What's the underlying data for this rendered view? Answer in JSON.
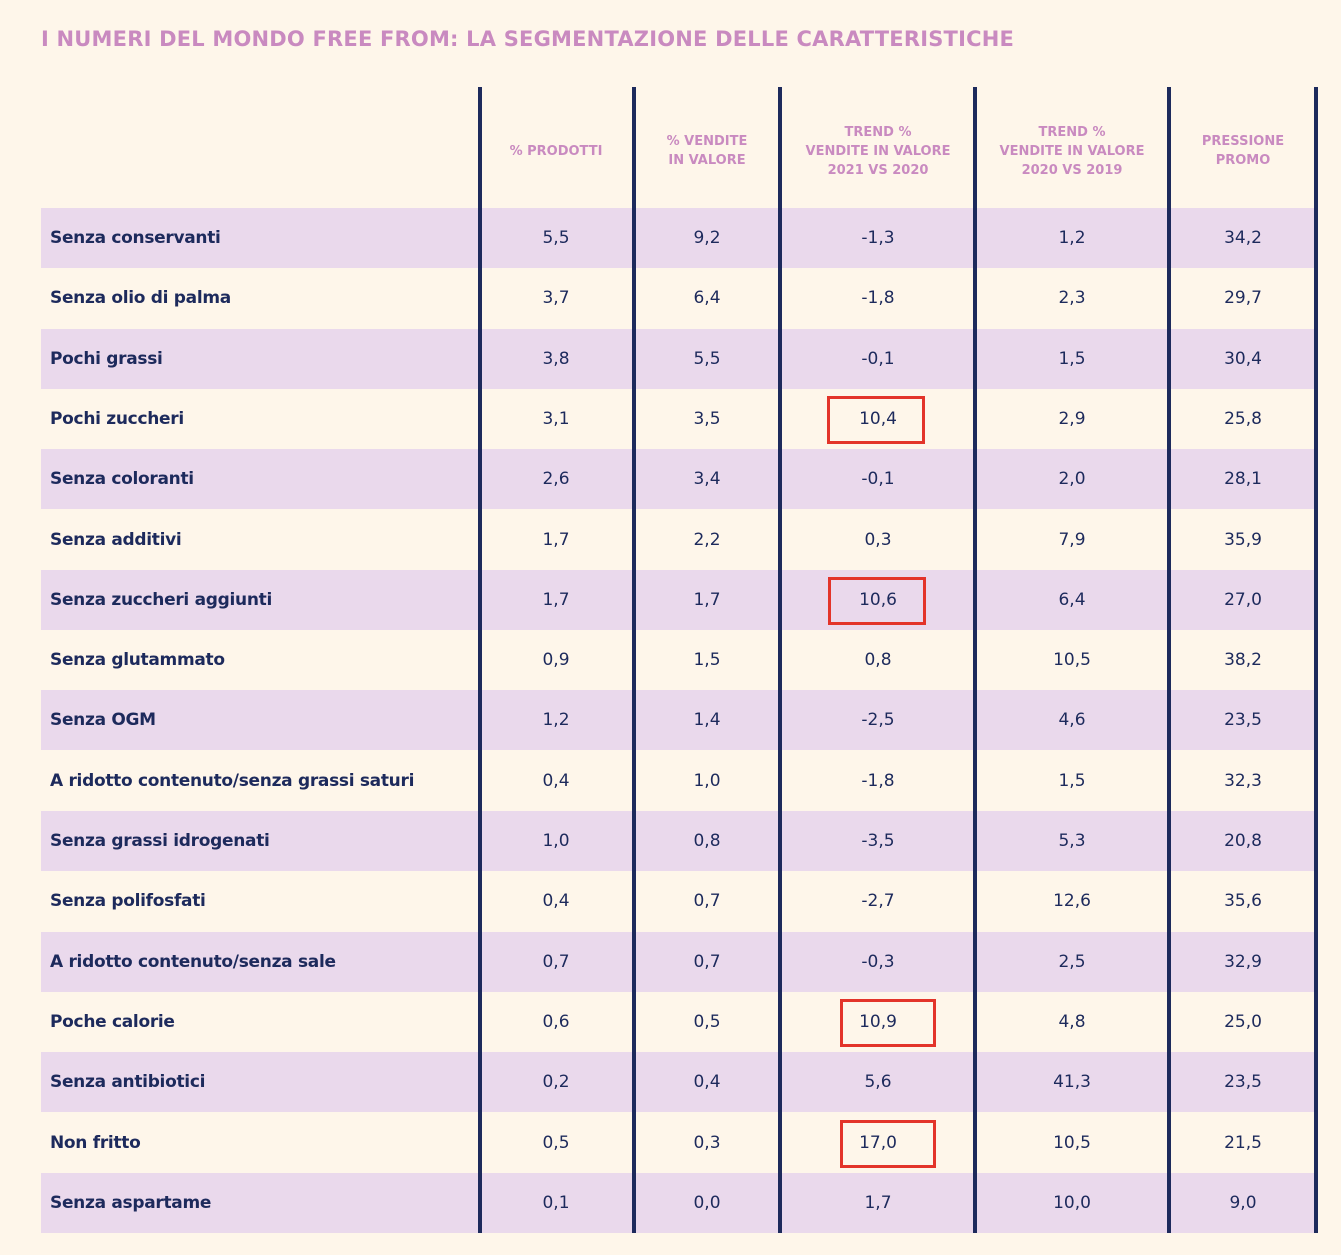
{
  "title": "I NUMERI DEL MONDO FREE FROM: LA SEGMENTAZIONE DELLE CARATTERISTICHE",
  "columns": [
    {
      "lines": [
        "% PRODOTTI"
      ]
    },
    {
      "lines": [
        "% VENDITE",
        "IN VALORE"
      ]
    },
    {
      "lines": [
        "TREND %",
        "VENDITE IN VALORE",
        "2021 VS 2020"
      ]
    },
    {
      "lines": [
        "TREND %",
        "VENDITE IN VALORE",
        "2020 VS 2019"
      ]
    },
    {
      "lines": [
        "PRESSIONE",
        "PROMO"
      ]
    }
  ],
  "rows": [
    {
      "label": "Senza conservanti",
      "values": [
        "5,5",
        "9,2",
        "-1,3",
        "1,2",
        "34,2"
      ],
      "highlight": false
    },
    {
      "label": "Senza olio di palma",
      "values": [
        "3,7",
        "6,4",
        "-1,8",
        "2,3",
        "29,7"
      ],
      "highlight": false
    },
    {
      "label": "Pochi grassi",
      "values": [
        "3,8",
        "5,5",
        "-0,1",
        "1,5",
        "30,4"
      ],
      "highlight": false
    },
    {
      "label": "Pochi zuccheri",
      "values": [
        "3,1",
        "3,5",
        "10,4",
        "2,9",
        "25,8"
      ],
      "highlight": true
    },
    {
      "label": "Senza coloranti",
      "values": [
        "2,6",
        "3,4",
        "-0,1",
        "2,0",
        "28,1"
      ],
      "highlight": false
    },
    {
      "label": "Senza additivi",
      "values": [
        "1,7",
        "2,2",
        "0,3",
        "7,9",
        "35,9"
      ],
      "highlight": false
    },
    {
      "label": "Senza zuccheri aggiunti",
      "values": [
        "1,7",
        "1,7",
        "10,6",
        "6,4",
        "27,0"
      ],
      "highlight": true
    },
    {
      "label": "Senza glutammato",
      "values": [
        "0,9",
        "1,5",
        "0,8",
        "10,5",
        "38,2"
      ],
      "highlight": false
    },
    {
      "label": "Senza OGM",
      "values": [
        "1,2",
        "1,4",
        "-2,5",
        "4,6",
        "23,5"
      ],
      "highlight": false
    },
    {
      "label": "A ridotto contenuto/senza grassi saturi",
      "values": [
        "0,4",
        "1,0",
        "-1,8",
        "1,5",
        "32,3"
      ],
      "highlight": false
    },
    {
      "label": "Senza grassi idrogenati",
      "values": [
        "1,0",
        "0,8",
        "-3,5",
        "5,3",
        "20,8"
      ],
      "highlight": false
    },
    {
      "label": "Senza polifosfati",
      "values": [
        "0,4",
        "0,7",
        "-2,7",
        "12,6",
        "35,6"
      ],
      "highlight": false
    },
    {
      "label": "A ridotto contenuto/senza sale",
      "values": [
        "0,7",
        "0,7",
        "-0,3",
        "2,5",
        "32,9"
      ],
      "highlight": false
    },
    {
      "label": "Poche calorie",
      "values": [
        "0,6",
        "0,5",
        "10,9",
        "4,8",
        "25,0"
      ],
      "highlight": true
    },
    {
      "label": "Senza antibiotici",
      "values": [
        "0,2",
        "0,4",
        "5,6",
        "41,3",
        "23,5"
      ],
      "highlight": false
    },
    {
      "label": "Non fritto",
      "values": [
        "0,5",
        "0,3",
        "17,0",
        "10,5",
        "21,5"
      ],
      "highlight": true
    },
    {
      "label": "Senza aspartame",
      "values": [
        "0,1",
        "0,0",
        "1,7",
        "10,0",
        "9,0"
      ],
      "highlight": false
    }
  ],
  "colors": {
    "background": "#fef6ea",
    "band": "#ead9ec",
    "title": "#c98ac0",
    "text": "#1d2a5c",
    "highlight": "#e3342a"
  }
}
